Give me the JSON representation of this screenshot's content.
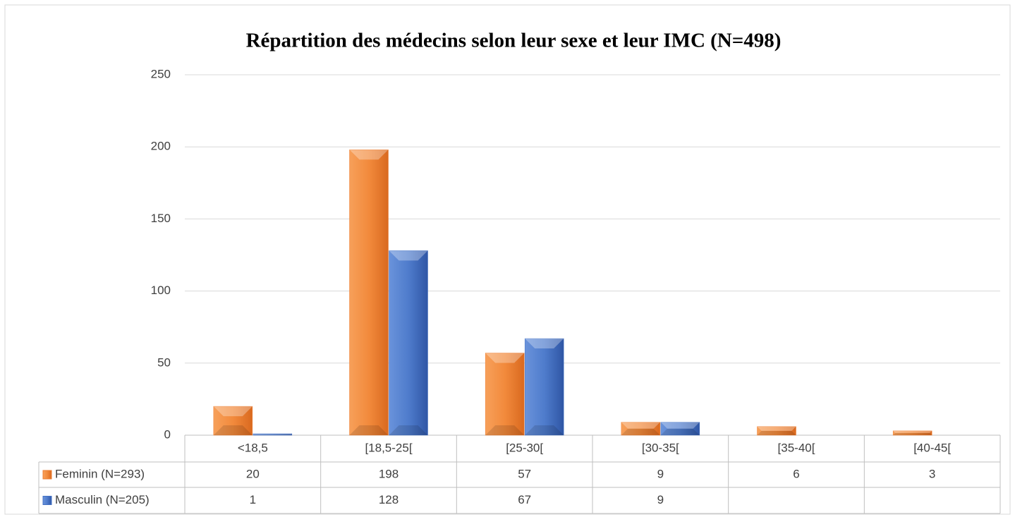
{
  "chart_data": {
    "type": "bar",
    "title": "Répartition des médecins selon leur sexe et leur IMC (N=498)",
    "categories": [
      "<18,5",
      "[18,5-25[",
      "[25-30[",
      "[30-35[",
      "[35-40[",
      "[40-45["
    ],
    "series": [
      {
        "name": "Feminin (N=293)",
        "color": "#ED7D31",
        "values": [
          20,
          198,
          57,
          9,
          6,
          3
        ]
      },
      {
        "name": "Masculin (N=205)",
        "color": "#4472C4",
        "values": [
          1,
          128,
          67,
          9,
          null,
          null
        ]
      }
    ],
    "ylim": [
      0,
      250
    ],
    "yticks": [
      0,
      50,
      100,
      150,
      200,
      250
    ],
    "grid": true
  }
}
